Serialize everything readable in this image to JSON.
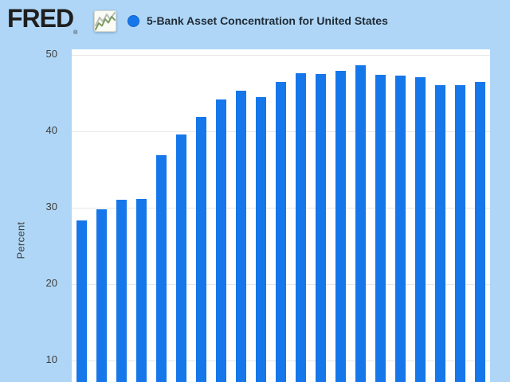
{
  "header": {
    "logo_text": "FRED",
    "registered_mark": "®",
    "logo_icon": "line-chart-icon"
  },
  "legend": {
    "marker_color": "#1577ea",
    "label": "5-Bank Asset Concentration for United States"
  },
  "y_axis": {
    "label": "Percent",
    "ticks": [
      50,
      40,
      30,
      20,
      10
    ]
  },
  "colors": {
    "background": "#afd6f6",
    "plot_background": "#ffffff",
    "bar": "#1577ea",
    "gridline": "#e7e7e7",
    "axis_text": "#3d3d3d",
    "title_text": "#1f2b38",
    "logo_text": "#1e1e1e"
  },
  "chart_data": {
    "type": "bar",
    "title": "5-Bank Asset Concentration for United States",
    "xlabel": "",
    "ylabel": "Percent",
    "y_ticks": [
      10,
      20,
      30,
      40,
      50
    ],
    "ylim_visible_top": 50.7,
    "grid": true,
    "legend_position": "top",
    "num_bars": 21,
    "x_axis_labels_visible": false,
    "bottom_axis_cut_off": true,
    "categories": [],
    "values": [
      28.3,
      29.8,
      31.0,
      31.2,
      36.9,
      39.6,
      41.9,
      44.2,
      45.3,
      44.5,
      46.5,
      47.6,
      47.5,
      47.9,
      48.6,
      47.4,
      47.3,
      47.1,
      46.0,
      46.0,
      46.5
    ]
  }
}
